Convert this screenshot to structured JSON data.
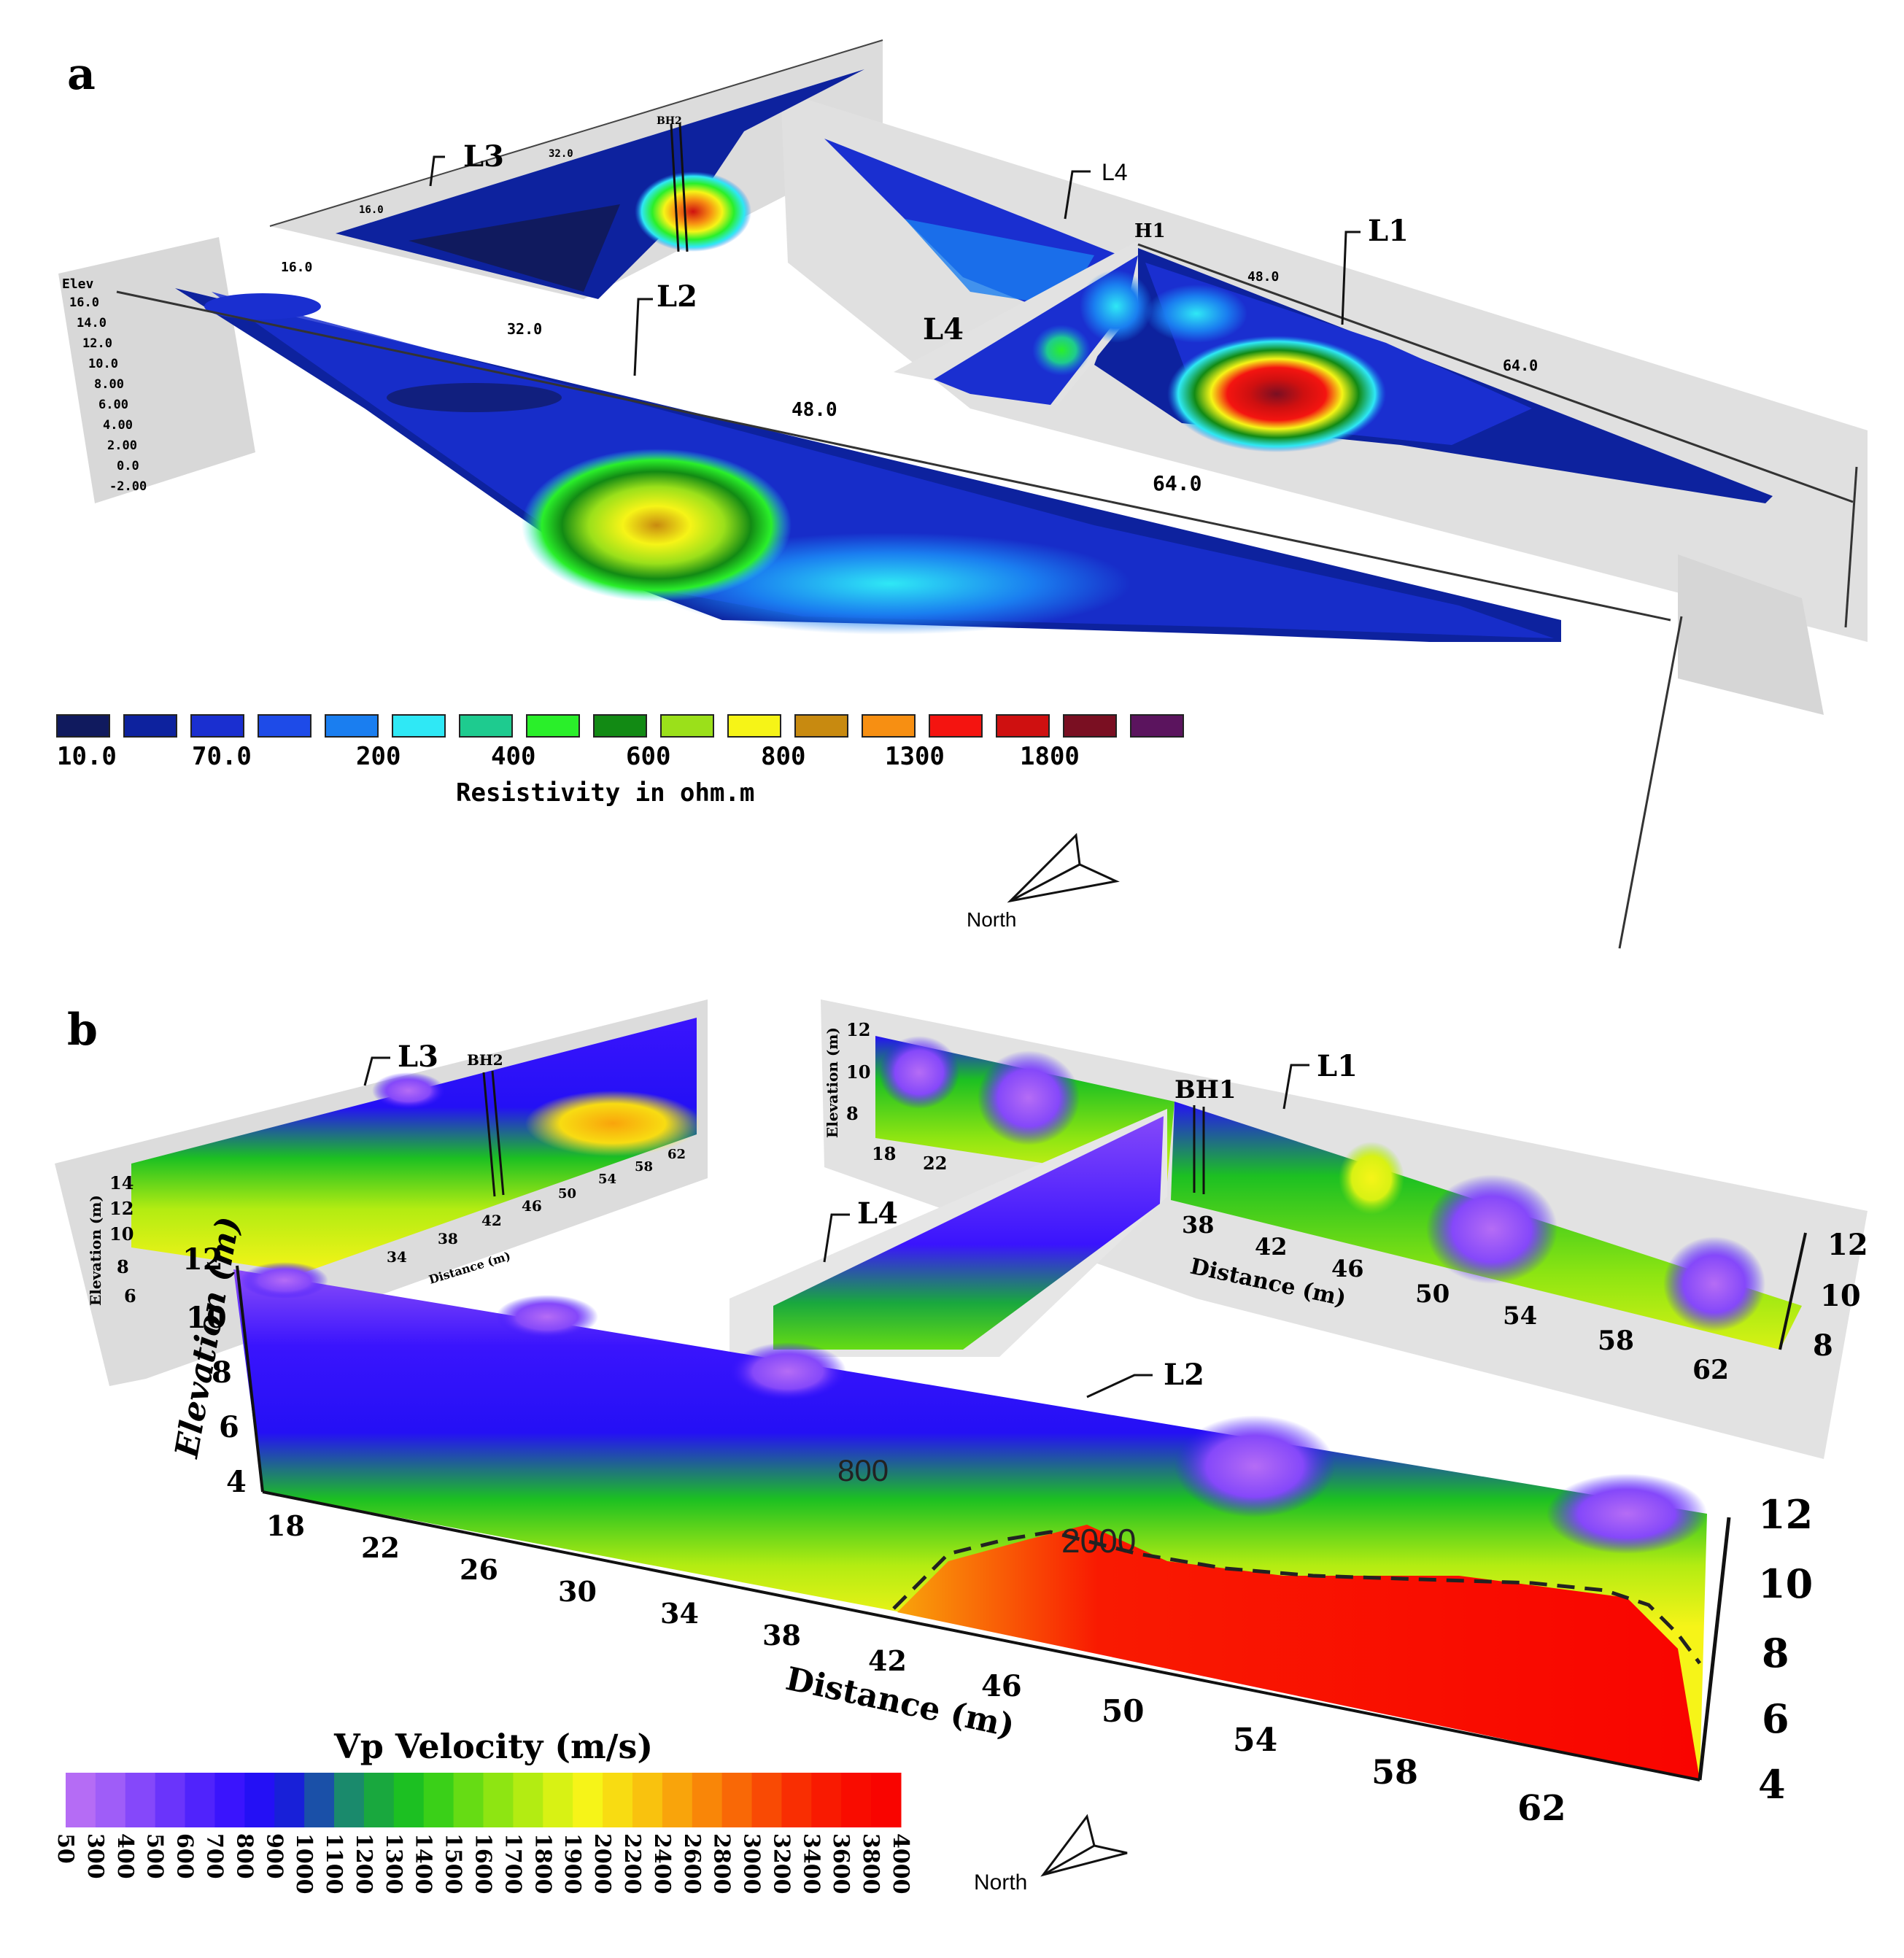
{
  "panel_a": {
    "letter": "a",
    "lines": [
      "L1",
      "L2",
      "L3",
      "L4",
      "L4"
    ],
    "borehole_1": "H1",
    "borehole_2": "BH2",
    "l2_distance_ticks": [
      "16.0",
      "32.0",
      "48.0",
      "64.0"
    ],
    "l1_distance_ticks": [
      "48.0",
      "64.0"
    ],
    "l3_distance_ticks": [
      "16.0",
      "32.0"
    ],
    "elevation_title": "Elev",
    "elevation_ticks": [
      "16.0",
      "14.0",
      "12.0",
      "10.0",
      "8.00",
      "6.00",
      "4.00",
      "2.00",
      "0.0",
      "-2.00"
    ],
    "colorbar": {
      "colors": [
        "#101a5e",
        "#0d229e",
        "#1a2fd0",
        "#1e4be8",
        "#1a7ef0",
        "#2fe8f5",
        "#1ecb8f",
        "#2aef2a",
        "#128a14",
        "#9be01a",
        "#f6f417",
        "#c88a10",
        "#f78f12",
        "#f41410",
        "#cf1010",
        "#7a0f22",
        "#5b145e"
      ],
      "labels": [
        "10.0",
        "70.0",
        "200",
        "400",
        "600",
        "800",
        "1300",
        "1800"
      ],
      "title": "Resistivity in ohm.m"
    },
    "north_label": "North"
  },
  "panel_b": {
    "letter": "b",
    "lines": [
      "L3",
      "BH2",
      "L1",
      "BH1",
      "L4",
      "L2"
    ],
    "axis_title_elevation": "Elevation (m)",
    "axis_title_distance": "Distance (m)",
    "l2_distance_ticks": [
      "18",
      "22",
      "26",
      "30",
      "34",
      "38",
      "42",
      "46",
      "50",
      "54",
      "58",
      "62"
    ],
    "l2_left_elev_ticks": [
      "12",
      "10",
      "8",
      "6",
      "4"
    ],
    "l2_right_elev_ticks": [
      "12",
      "10",
      "8",
      "6",
      "4"
    ],
    "l1_distance_ticks": [
      "38",
      "42",
      "46",
      "50",
      "54",
      "58",
      "62"
    ],
    "l1_elev_ticks": [
      "12",
      "10",
      "8"
    ],
    "l1_left_elev_ticks": [
      "12",
      "10",
      "8"
    ],
    "l1_left_distance_ticks": [
      "18",
      "22"
    ],
    "l3_elev_ticks": [
      "14",
      "12",
      "10",
      "8",
      "6"
    ],
    "l3_distance_ticks": [
      "34",
      "38",
      "42",
      "46",
      "50",
      "54",
      "58",
      "62"
    ],
    "contour_800": "800",
    "contour_2000": "2000",
    "colorbar": {
      "title": "Vp Velocity (m/s)",
      "labels": [
        "50",
        "300",
        "400",
        "500",
        "600",
        "700",
        "800",
        "900",
        "1000",
        "1100",
        "1200",
        "1300",
        "1400",
        "1500",
        "1600",
        "1700",
        "1800",
        "1900",
        "2000",
        "2200",
        "2400",
        "2600",
        "2800",
        "3000",
        "3200",
        "3400",
        "3600",
        "3800",
        "4000"
      ],
      "colors": [
        "#b56cf5",
        "#9f5df8",
        "#8548fa",
        "#6a34fb",
        "#5023fc",
        "#3a14fd",
        "#2410f5",
        "#1820d8",
        "#1a50a8",
        "#1a8a6c",
        "#19a83e",
        "#1cc022",
        "#3ad018",
        "#66dc14",
        "#8ee512",
        "#b3ec12",
        "#d8f214",
        "#f6f418",
        "#f8dc12",
        "#f9c20e",
        "#f9a40b",
        "#f98608",
        "#f96806",
        "#f94a04",
        "#f92e02",
        "#f91a01",
        "#f90c00",
        "#f90400"
      ]
    },
    "north_label": "North"
  }
}
